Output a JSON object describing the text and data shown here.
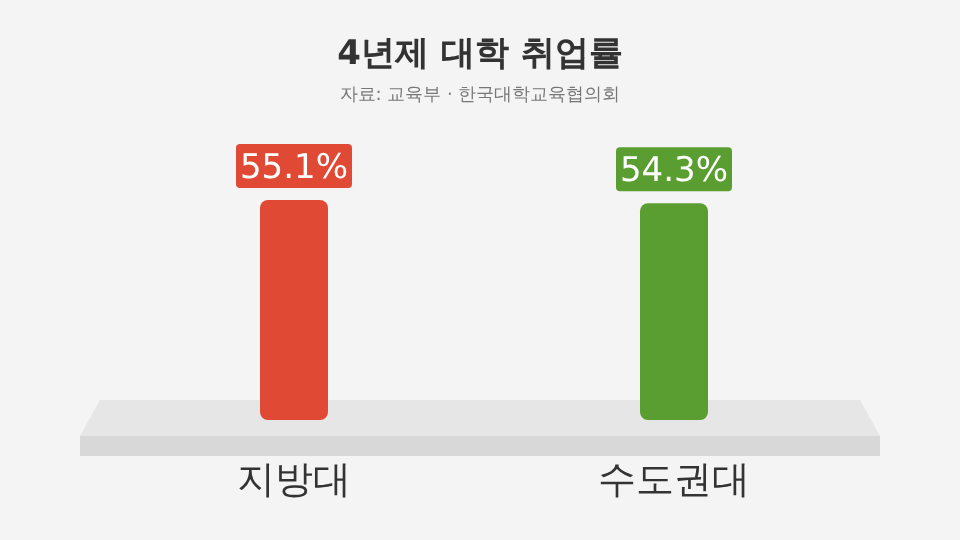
{
  "chart_data": {
    "type": "bar",
    "title": "4년제 대학 취업률",
    "annotations": [
      "자료: 교육부 · 한국대학교육협의회"
    ],
    "categories": [
      "지방대",
      "수도권대"
    ],
    "values": [
      55.1,
      54.3
    ],
    "value_labels": [
      "55.1%",
      "54.3%"
    ],
    "colors": [
      "#e04a35",
      "#5a9e32"
    ]
  }
}
